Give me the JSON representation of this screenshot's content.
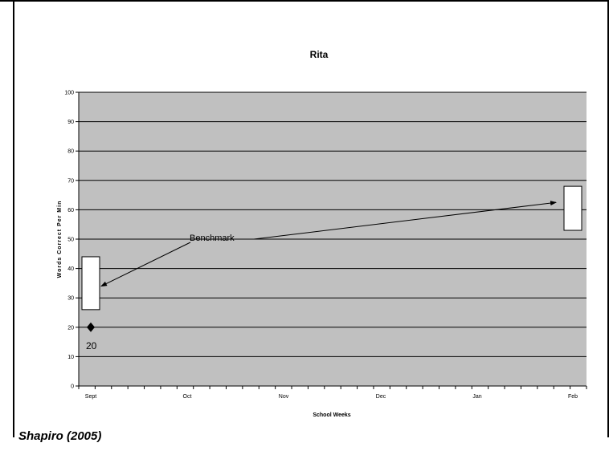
{
  "citation": "Shapiro (2005)",
  "chart_data": {
    "type": "scatter",
    "title": "Rita",
    "xlabel": "School Weeks",
    "ylabel": "Words Correct Per Min",
    "ylim": [
      0,
      100
    ],
    "ytick_step": 10,
    "x_tick_labels": [
      "Sept",
      "Oct",
      "Nov",
      "Dec",
      "Jan",
      "Feb"
    ],
    "grid": true,
    "legend": "none",
    "plot_background": "#c0c0c0",
    "series": [
      {
        "marker": "diamond",
        "points": [
          {
            "x": "Sept",
            "y": 20,
            "label": "20"
          }
        ]
      }
    ],
    "benchmark_boxes": [
      {
        "x": "Sept",
        "low": 26,
        "high": 44
      },
      {
        "x": "Feb",
        "low": 53,
        "high": 68
      }
    ],
    "annotation": "Benchmark"
  }
}
